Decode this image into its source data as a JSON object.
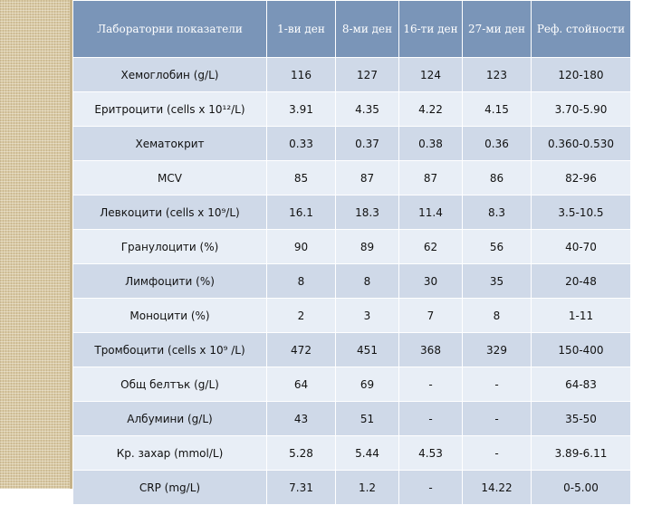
{
  "table": {
    "headers": [
      "Лабораторни показатели",
      "1-ви ден",
      "8-ми ден",
      "16-ти ден",
      "27-ми ден",
      "Реф. стойности"
    ],
    "rows": [
      {
        "name": "Хемоглобин (g/L)",
        "day1": "116",
        "day8": "127",
        "day16": "124",
        "day27": "123",
        "ref": "120-180"
      },
      {
        "name": "Еритроцити (cells x 10¹²/L)",
        "day1": "3.91",
        "day8": "4.35",
        "day16": "4.22",
        "day27": "4.15",
        "ref": "3.70-5.90"
      },
      {
        "name": "Хематокрит",
        "day1": "0.33",
        "day8": "0.37",
        "day16": "0.38",
        "day27": "0.36",
        "ref": "0.360-0.530"
      },
      {
        "name": "MCV",
        "day1": "85",
        "day8": "87",
        "day16": "87",
        "day27": "86",
        "ref": "82-96"
      },
      {
        "name": "Левкоцити (cells x 10⁹/L)",
        "day1": "16.1",
        "day8": "18.3",
        "day16": "11.4",
        "day27": "8.3",
        "ref": "3.5-10.5"
      },
      {
        "name": "Гранулоцити (%)",
        "day1": "90",
        "day8": "89",
        "day16": "62",
        "day27": "56",
        "ref": "40-70"
      },
      {
        "name": "Лимфоцити (%)",
        "day1": "8",
        "day8": "8",
        "day16": "30",
        "day27": "35",
        "ref": "20-48"
      },
      {
        "name": "Моноцити (%)",
        "day1": "2",
        "day8": "3",
        "day16": "7",
        "day27": "8",
        "ref": "1-11"
      },
      {
        "name": "Тромбоцити (cells x 10⁹ /L)",
        "day1": "472",
        "day8": "451",
        "day16": "368",
        "day27": "329",
        "ref": "150-400"
      },
      {
        "name": "Общ белтък (g/L)",
        "day1": "64",
        "day8": "69",
        "day16": "-",
        "day27": "-",
        "ref": "64-83"
      },
      {
        "name": "Албумини (g/L)",
        "day1": "43",
        "day8": "51",
        "day16": "-",
        "day27": "-",
        "ref": "35-50"
      },
      {
        "name": "Кр. захар (mmol/L)",
        "day1": "5.28",
        "day8": "5.44",
        "day16": "4.53",
        "day27": "-",
        "ref": "3.89-6.11"
      },
      {
        "name": "CRP (mg/L)",
        "day1": "7.31",
        "day8": "1.2",
        "day16": "-",
        "day27": "14.22",
        "ref": "0-5.00"
      }
    ]
  },
  "colors": {
    "header_bg": "#7a95b8",
    "row_dark": "#cfd9e8",
    "row_light": "#e8eef6",
    "abnormal_text": "#c0140d",
    "sidebar": "#d9c9a3"
  }
}
